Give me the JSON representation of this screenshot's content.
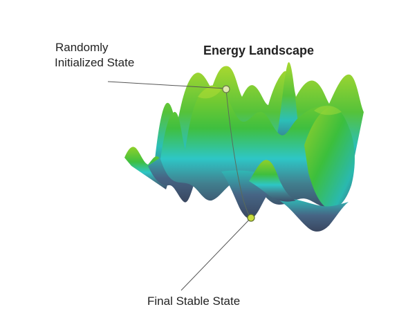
{
  "diagram": {
    "title": "Energy Landscape",
    "start_label": [
      "Randomly",
      "Initialized State"
    ],
    "final_label": "Final Stable State",
    "colors": {
      "peak_green": "#7cc62e",
      "mid_green": "#3fbf3f",
      "cyan": "#2ec6c6",
      "valley_slate": "#4a5f7a",
      "deep_shadow": "#3a4a60",
      "marker": "#c8dc3c",
      "text": "#222222",
      "background": "#ffffff"
    }
  }
}
